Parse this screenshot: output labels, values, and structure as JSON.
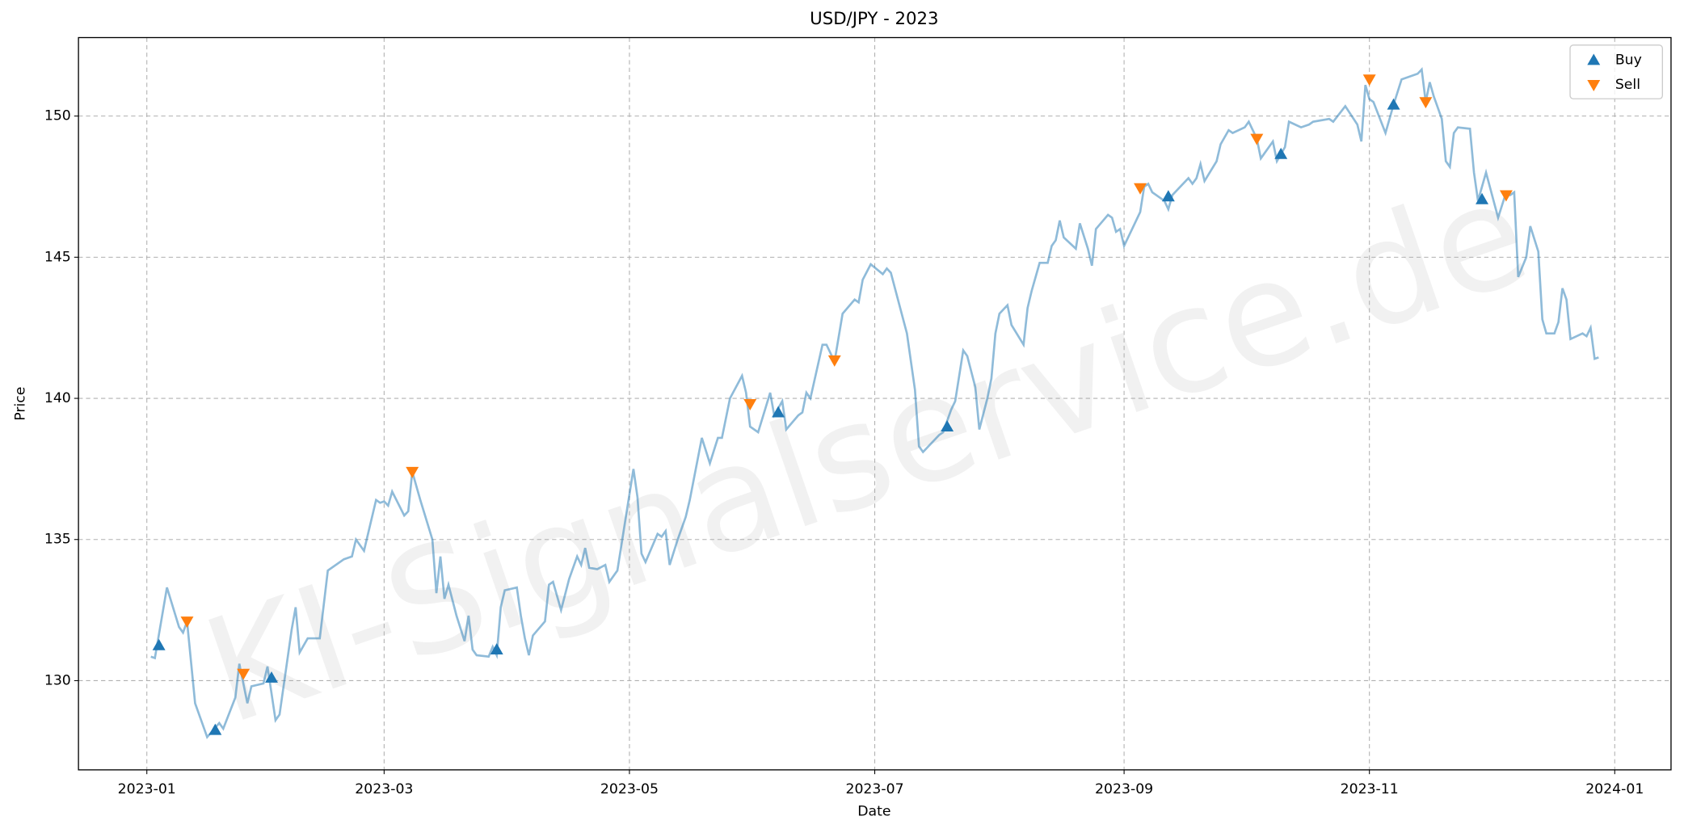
{
  "chart_data": {
    "type": "line",
    "title": "USD/JPY - 2023",
    "xlabel": "Date",
    "ylabel": "Price",
    "watermark": "KI-Signalservice.de",
    "color": "#1f77b4",
    "grid": true,
    "legend": "upper right",
    "xlim": [
      -17,
      379
    ],
    "ylim": [
      126.84,
      152.78
    ],
    "xticks": [
      {
        "value": 0,
        "label": "2023-01"
      },
      {
        "value": 59,
        "label": "2023-03"
      },
      {
        "value": 120,
        "label": "2023-05"
      },
      {
        "value": 181,
        "label": "2023-07"
      },
      {
        "value": 243,
        "label": "2023-09"
      },
      {
        "value": 304,
        "label": "2023-11"
      },
      {
        "value": 365,
        "label": "2024-01"
      }
    ],
    "yticks": [
      130,
      135,
      140,
      145,
      150
    ],
    "x": [
      1,
      2,
      5,
      8,
      9,
      10,
      12,
      15,
      18,
      19,
      22,
      23,
      25,
      26,
      29,
      30,
      32,
      33,
      36,
      37,
      38,
      40,
      43,
      45,
      49,
      51,
      52,
      54,
      57,
      58,
      59,
      60,
      61,
      64,
      65,
      66,
      68,
      71,
      72,
      73,
      74,
      75,
      77,
      79,
      80,
      81,
      82,
      85,
      86,
      87,
      88,
      89,
      92,
      93,
      94,
      95,
      96,
      99,
      100,
      101,
      103,
      105,
      107,
      108,
      109,
      110,
      112,
      114,
      115,
      117,
      119,
      121,
      122,
      123,
      124,
      127,
      128,
      129,
      130,
      132,
      134,
      135,
      138,
      140,
      142,
      143,
      145,
      148,
      149,
      150,
      152,
      155,
      156,
      158,
      159,
      162,
      163,
      164,
      165,
      168,
      169,
      171,
      173,
      176,
      177,
      178,
      180,
      183,
      184,
      185,
      189,
      191,
      192,
      193,
      197,
      198,
      200,
      201,
      203,
      204,
      206,
      207,
      209,
      210,
      211,
      212,
      214,
      215,
      218,
      219,
      220,
      222,
      224,
      225,
      226,
      227,
      228,
      231,
      232,
      234,
      235,
      236,
      239,
      240,
      241,
      242,
      243,
      245,
      247,
      248,
      249,
      250,
      253,
      254,
      255,
      259,
      260,
      261,
      262,
      263,
      266,
      267,
      269,
      270,
      273,
      274,
      276,
      277,
      280,
      281,
      283,
      284,
      287,
      289,
      290,
      294,
      295,
      298,
      301,
      302,
      303,
      304,
      305,
      308,
      310,
      312,
      316,
      317,
      318,
      319,
      320,
      322,
      323,
      324,
      325,
      326,
      329,
      330,
      331,
      333,
      336,
      338,
      339,
      340,
      341,
      343,
      344,
      346,
      347,
      348,
      350,
      351,
      352,
      353,
      354,
      357,
      358,
      359,
      360,
      361
    ],
    "values": [
      130.85,
      130.8,
      133.3,
      131.9,
      131.7,
      132.1,
      129.2,
      128.0,
      128.5,
      128.3,
      129.4,
      130.6,
      129.2,
      129.8,
      129.9,
      130.5,
      128.6,
      128.8,
      131.8,
      132.6,
      131.0,
      131.5,
      131.5,
      133.9,
      134.3,
      134.4,
      135.0,
      134.6,
      136.4,
      136.3,
      136.35,
      136.2,
      136.7,
      135.85,
      136.0,
      137.4,
      136.4,
      135.0,
      133.1,
      134.4,
      132.9,
      133.4,
      132.3,
      131.4,
      132.3,
      131.1,
      130.9,
      130.85,
      131.2,
      130.9,
      132.6,
      133.2,
      133.3,
      132.3,
      131.5,
      130.9,
      131.6,
      132.1,
      133.4,
      133.5,
      132.5,
      133.6,
      134.4,
      134.1,
      134.7,
      134.0,
      133.95,
      134.1,
      133.5,
      133.9,
      135.7,
      137.5,
      136.5,
      134.5,
      134.2,
      135.2,
      135.1,
      135.3,
      134.1,
      135.0,
      135.8,
      136.4,
      138.6,
      137.7,
      138.6,
      138.6,
      140.0,
      140.8,
      140.2,
      139.0,
      138.8,
      140.2,
      139.4,
      139.9,
      138.9,
      139.4,
      139.5,
      140.2,
      140.0,
      141.9,
      141.9,
      141.3,
      143.0,
      143.5,
      143.4,
      144.2,
      144.75,
      144.4,
      144.6,
      144.45,
      142.3,
      140.3,
      138.3,
      138.1,
      138.7,
      138.8,
      139.6,
      139.9,
      141.7,
      141.5,
      140.4,
      138.9,
      140.0,
      140.7,
      142.3,
      143.0,
      143.3,
      142.6,
      141.9,
      143.2,
      143.8,
      144.8,
      144.8,
      145.4,
      145.6,
      146.3,
      145.7,
      145.3,
      146.2,
      145.3,
      144.7,
      146.0,
      146.5,
      146.4,
      145.9,
      146.0,
      145.4,
      146.0,
      146.6,
      147.5,
      147.6,
      147.3,
      147.0,
      146.7,
      147.2,
      147.8,
      147.6,
      147.8,
      148.3,
      147.7,
      148.4,
      149.0,
      149.5,
      149.4,
      149.6,
      149.8,
      149.2,
      148.5,
      149.1,
      148.4,
      148.9,
      149.8,
      149.6,
      149.7,
      149.8,
      149.9,
      149.8,
      150.35,
      149.7,
      149.1,
      151.1,
      150.6,
      150.5,
      149.4,
      150.4,
      151.3,
      151.5,
      151.65,
      150.5,
      151.2,
      150.7,
      149.9,
      148.4,
      148.2,
      149.4,
      149.6,
      149.55,
      148.0,
      147.0,
      148.0,
      146.4,
      147.3,
      147.2,
      147.3,
      144.3,
      145.0,
      146.1,
      145.2,
      142.8,
      142.3,
      142.3,
      142.7,
      143.9,
      143.5,
      142.1,
      142.3,
      142.2,
      142.5,
      141.4,
      141.45
    ],
    "markers": [
      {
        "name": "Buy",
        "color": "#1f77b4",
        "shape": "up",
        "x": [
          3,
          17,
          31,
          87,
          157,
          199,
          254,
          282,
          310,
          332
        ],
        "values": [
          131.25,
          128.25,
          130.1,
          131.1,
          139.5,
          139.0,
          147.15,
          148.65,
          150.4,
          147.05
        ]
      },
      {
        "name": "Sell",
        "color": "#ff7f0e",
        "shape": "down",
        "x": [
          10,
          24,
          66,
          150,
          171,
          247,
          276,
          304,
          318,
          338
        ],
        "values": [
          132.1,
          130.25,
          137.4,
          139.8,
          141.35,
          147.45,
          149.2,
          151.3,
          150.5,
          147.2
        ]
      }
    ]
  }
}
